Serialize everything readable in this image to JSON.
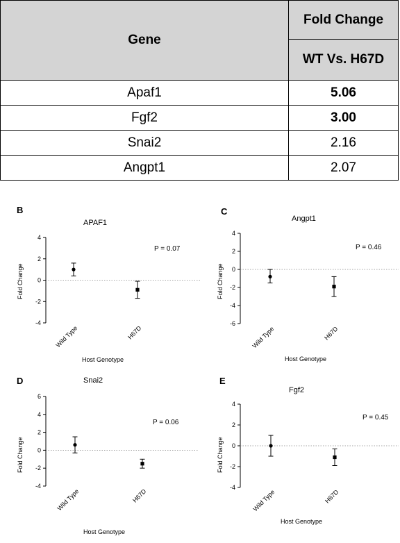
{
  "table": {
    "col_gene": "Gene",
    "col_fold": "Fold Change",
    "col_sub": "WT Vs. H67D",
    "rows": [
      {
        "gene": "Apaf1",
        "value": "5.06",
        "bold": true
      },
      {
        "gene": "Fgf2",
        "value": "3.00",
        "bold": true
      },
      {
        "gene": "Snai2",
        "value": "2.16",
        "bold": false
      },
      {
        "gene": "Angpt1",
        "value": "2.07",
        "bold": false
      }
    ]
  },
  "chart_data": [
    {
      "type": "scatter",
      "panel": "B",
      "title": "APAF1",
      "ylabel": "Fold Change",
      "xlabel": "Host Genotype",
      "categories": [
        "Wild Type",
        "H67D"
      ],
      "ylim": [
        -4,
        4
      ],
      "yticks": [
        -4,
        -2,
        0,
        2,
        4
      ],
      "points": [
        {
          "category": "Wild Type",
          "mean": 1.0,
          "lower": 0.4,
          "upper": 1.6,
          "marker": "circle"
        },
        {
          "category": "H67D",
          "mean": -0.9,
          "lower": -1.7,
          "upper": -0.1,
          "marker": "square"
        }
      ],
      "annotation": "P = 0.07",
      "reference_line": 0
    },
    {
      "type": "scatter",
      "panel": "C",
      "title": "Angpt1",
      "ylabel": "Fold Change",
      "xlabel": "Host Genotype",
      "categories": [
        "Wild Type",
        "H67D"
      ],
      "ylim": [
        -6,
        4
      ],
      "yticks": [
        -6,
        -4,
        -2,
        0,
        2,
        4
      ],
      "points": [
        {
          "category": "Wild Type",
          "mean": -0.8,
          "lower": -1.5,
          "upper": 0.0,
          "marker": "circle"
        },
        {
          "category": "H67D",
          "mean": -1.9,
          "lower": -3.0,
          "upper": -0.8,
          "marker": "square"
        }
      ],
      "annotation": "P = 0.46",
      "reference_line": 0
    },
    {
      "type": "scatter",
      "panel": "D",
      "title": "Snai2",
      "ylabel": "Fold Change",
      "xlabel": "Host Genotype",
      "categories": [
        "Wild Type",
        "H67D"
      ],
      "ylim": [
        -4,
        6
      ],
      "yticks": [
        -4,
        -2,
        0,
        2,
        4,
        6
      ],
      "points": [
        {
          "category": "Wild Type",
          "mean": 0.6,
          "lower": -0.3,
          "upper": 1.5,
          "marker": "circle"
        },
        {
          "category": "H67D",
          "mean": -1.5,
          "lower": -2.0,
          "upper": -1.0,
          "marker": "square"
        }
      ],
      "annotation": "P = 0.06",
      "reference_line": 0
    },
    {
      "type": "scatter",
      "panel": "E",
      "title": "Fgf2",
      "ylabel": "Fold Change",
      "xlabel": "Host Genotype",
      "categories": [
        "Wild Type",
        "H67D"
      ],
      "ylim": [
        -4,
        4
      ],
      "yticks": [
        -4,
        -2,
        0,
        2,
        4
      ],
      "points": [
        {
          "category": "Wild Type",
          "mean": 0.0,
          "lower": -1.0,
          "upper": 1.0,
          "marker": "circle"
        },
        {
          "category": "H67D",
          "mean": -1.1,
          "lower": -1.9,
          "upper": -0.3,
          "marker": "square"
        }
      ],
      "annotation": "P = 0.45",
      "reference_line": 0
    }
  ]
}
